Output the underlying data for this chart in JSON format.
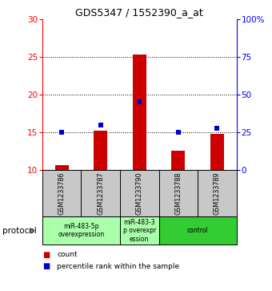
{
  "title": "GDS5347 / 1552390_a_at",
  "samples": [
    "GSM1233786",
    "GSM1233787",
    "GSM1233790",
    "GSM1233788",
    "GSM1233789"
  ],
  "count_values": [
    10.7,
    15.2,
    25.3,
    12.6,
    14.85
  ],
  "percentile_values": [
    25,
    30,
    45,
    25,
    28
  ],
  "ylim_left": [
    10,
    30
  ],
  "ylim_right": [
    0,
    100
  ],
  "yticks_left": [
    10,
    15,
    20,
    25,
    30
  ],
  "yticks_right": [
    0,
    25,
    50,
    75,
    100
  ],
  "ytick_labels_right": [
    "0",
    "25",
    "50",
    "75",
    "100%"
  ],
  "bar_color": "#cc0000",
  "dot_color": "#0000cc",
  "dotted_line_y": [
    15,
    20,
    25
  ],
  "groups": [
    {
      "label": "miR-483-5p\noverexpression",
      "samples": [
        0,
        1
      ],
      "color": "#aaffaa"
    },
    {
      "label": "miR-483-3\np overexpr\nession",
      "samples": [
        2
      ],
      "color": "#aaffaa"
    },
    {
      "label": "control",
      "samples": [
        3,
        4
      ],
      "color": "#33cc33"
    }
  ],
  "protocol_label": "protocol",
  "legend_items": [
    {
      "color": "#cc0000",
      "label": "count"
    },
    {
      "color": "#0000cc",
      "label": "percentile rank within the sample"
    }
  ],
  "label_area_bg": "#c8c8c8",
  "bar_width": 0.35,
  "figwidth": 3.4,
  "figheight": 3.63,
  "dpi": 100
}
